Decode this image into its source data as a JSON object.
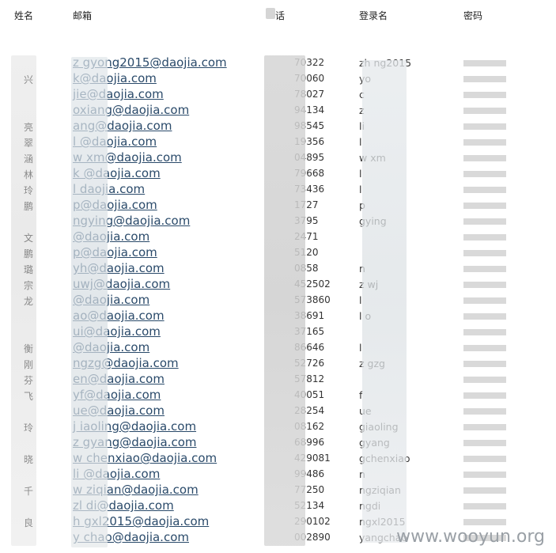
{
  "headers": {
    "name": "姓名",
    "email": "邮箱",
    "phone": "话",
    "login": "登录名",
    "password": "密码"
  },
  "rows": [
    {
      "name": "",
      "email": "z        gyong2015@daojia.com",
      "phone": "70322",
      "login": "zh         ng2015"
    },
    {
      "name": "兴",
      "email": "         k@daojia.com",
      "phone": "70060",
      "login": "yo"
    },
    {
      "name": "",
      "email": "       jie@daojia.com",
      "phone": "78027",
      "login": "c"
    },
    {
      "name": "",
      "email": "       oxiang@daojia.com",
      "phone": "94134",
      "login": "z"
    },
    {
      "name": "亮",
      "email": "       ang@daojia.com",
      "phone": "98545",
      "login": "li"
    },
    {
      "name": "翠",
      "email": "l      @daojia.com",
      "phone": "19356",
      "login": "l"
    },
    {
      "name": "涵",
      "email": "w     xm@daojia.com",
      "phone": "04895",
      "login": "w      xm"
    },
    {
      "name": "林",
      "email": "k     @daojia.com",
      "phone": "79668",
      "login": "l"
    },
    {
      "name": "玲",
      "email": "l     daojia.com",
      "phone": "73436",
      "login": "l"
    },
    {
      "name": "鹏",
      "email": "       p@daojia.com",
      "phone": "1727",
      "login": "p"
    },
    {
      "name": "",
      "email": "      ngying@daojia.com",
      "phone": "3795",
      "login": "      gying"
    },
    {
      "name": "文",
      "email": "       @daojia.com",
      "phone": "2471",
      "login": ""
    },
    {
      "name": "鹏",
      "email": "       p@daojia.com",
      "phone": "5120",
      "login": ""
    },
    {
      "name": "璐",
      "email": "      yh@daojia.com",
      "phone": "0858",
      "login": "n"
    },
    {
      "name": "宗",
      "email": "      uwj@daojia.com",
      "phone": "452502",
      "login": "z     wj"
    },
    {
      "name": "龙",
      "email": "       @daojia.com",
      "phone": "573860",
      "login": "l"
    },
    {
      "name": "",
      "email": "      ao@daojia.com",
      "phone": "38691",
      "login": "l      o"
    },
    {
      "name": "",
      "email": "      ui@daojia.com",
      "phone": "37165",
      "login": ""
    },
    {
      "name": "衡",
      "email": "       @daojia.com",
      "phone": "86646",
      "login": "l"
    },
    {
      "name": "刚",
      "email": "      ngzg@daojia.com",
      "phone": "52726",
      "login": "z      gzg"
    },
    {
      "name": "芬",
      "email": "      en@daojia.com",
      "phone": "57812",
      "login": ""
    },
    {
      "name": "飞",
      "email": "      yf@daojia.com",
      "phone": "40051",
      "login": "f"
    },
    {
      "name": "",
      "email": "      ue@daojia.com",
      "phone": "28254",
      "login": "ue"
    },
    {
      "name": "玲",
      "email": "j      iaoling@daojia.com",
      "phone": "08162",
      "login": "       giaoling"
    },
    {
      "name": "",
      "email": "z      gyang@daojia.com",
      "phone": "68996",
      "login": "       gyang"
    },
    {
      "name": "晓",
      "email": "w      chenxiao@daojia.com",
      "phone": "429081",
      "login": "      gchenxiao"
    },
    {
      "name": "",
      "email": "li      @daojia.com",
      "phone": "99486",
      "login": "n"
    },
    {
      "name": "千",
      "email": "w      ziqian@daojia.com",
      "phone": "77250",
      "login": "      ngziqian"
    },
    {
      "name": "",
      "email": "zl      di@daojia.com",
      "phone": "52134",
      "login": "      ngdi"
    },
    {
      "name": "良",
      "email": "h      gxl2015@daojia.com",
      "phone": "290102",
      "login": "      ngxl2015"
    },
    {
      "name": "",
      "email": "y      chao@daojia.com",
      "phone": "002890",
      "login": "yangchao"
    }
  ],
  "watermark": "www.wooyun.org",
  "colors": {
    "email_link": "#2a4a6a",
    "blur_gray": "#c8c8c8",
    "password_mask": "#d9d9d9"
  }
}
